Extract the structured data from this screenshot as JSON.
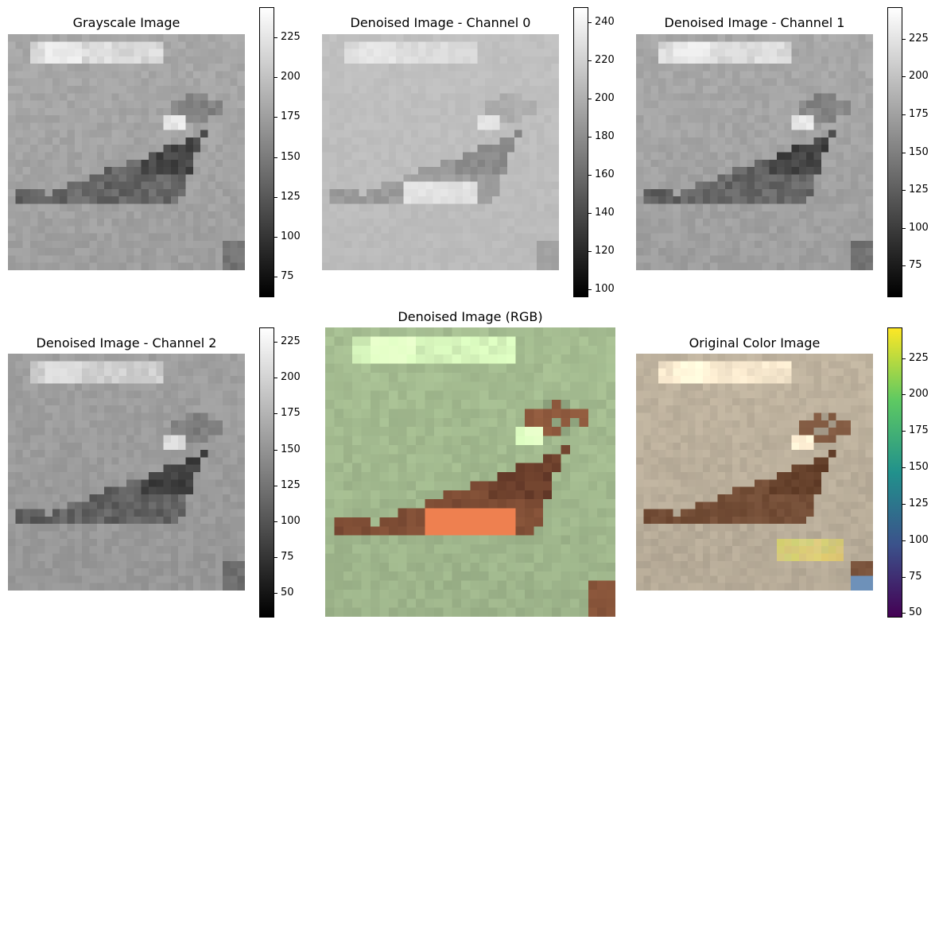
{
  "panels": [
    {
      "id": "grayscale",
      "title": "Grayscale Image",
      "colormap": "gray",
      "colorbar": {
        "min": 62,
        "max": 244,
        "ticks": [
          75,
          100,
          125,
          150,
          175,
          200,
          225
        ]
      }
    },
    {
      "id": "channel0",
      "title": "Denoised Image - Channel 0",
      "colormap": "gray",
      "colorbar": {
        "min": 96,
        "max": 248,
        "ticks": [
          100,
          120,
          140,
          160,
          180,
          200,
          220,
          240
        ]
      }
    },
    {
      "id": "channel1",
      "title": "Denoised Image - Channel 1",
      "colormap": "gray",
      "colorbar": {
        "min": 54,
        "max": 246,
        "ticks": [
          75,
          100,
          125,
          150,
          175,
          200,
          225
        ]
      }
    },
    {
      "id": "channel2",
      "title": "Denoised Image - Channel 2",
      "colormap": "gray",
      "colorbar": {
        "min": 33,
        "max": 235,
        "ticks": [
          50,
          75,
          100,
          125,
          150,
          175,
          200,
          225
        ]
      }
    },
    {
      "id": "rgb",
      "title": "Denoised Image (RGB)",
      "colormap": "rgb",
      "colorbar": null
    },
    {
      "id": "original",
      "title": "Original Color Image",
      "colormap": "viridis",
      "colorbar": {
        "min": 47,
        "max": 246,
        "ticks": [
          50,
          75,
          100,
          125,
          150,
          175,
          200,
          225
        ]
      }
    }
  ],
  "chart_data": {
    "type": "heatmap",
    "subject": "bird",
    "pixel_grid": "32x32",
    "colors": {
      "viridis": [
        "#440154",
        "#3b528b",
        "#21918c",
        "#5ec962",
        "#fde725"
      ],
      "rgb_background": "#a9bf95",
      "rgb_bird_body": "#8a5a3c",
      "rgb_bird_belly": "#ee7a4c",
      "original_background": "#c2b6a0",
      "original_bird_body": "#7a5640"
    }
  }
}
